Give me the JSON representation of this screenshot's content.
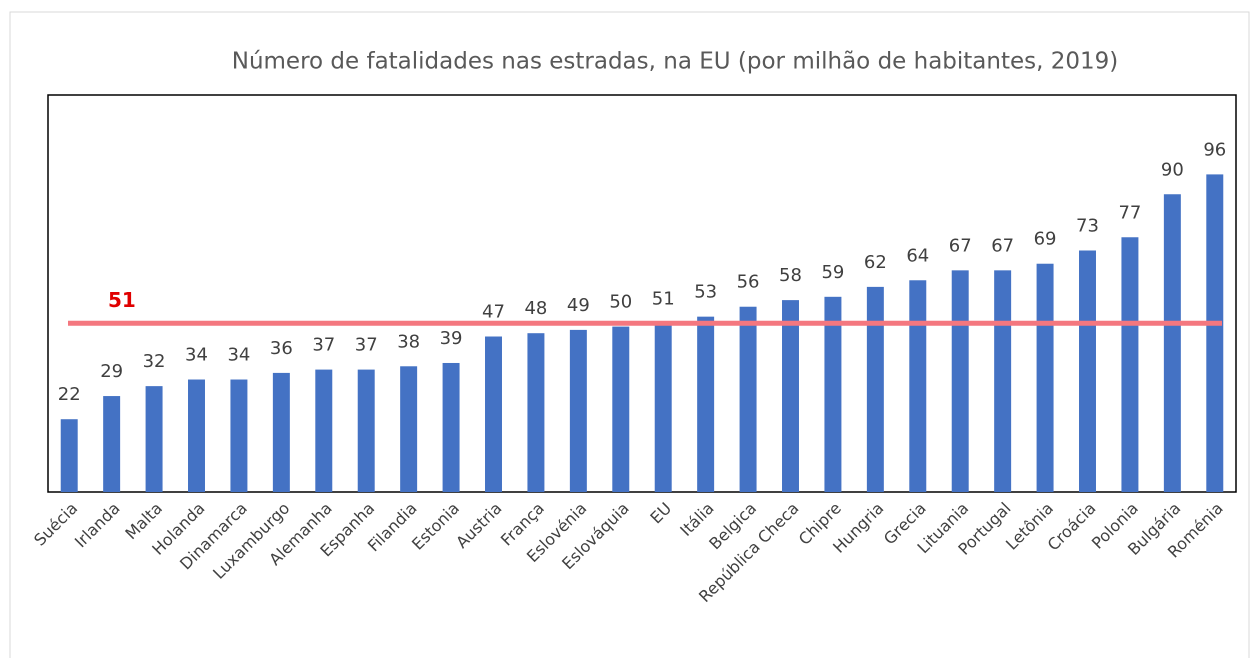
{
  "chart_data": {
    "type": "bar",
    "title": "Número de fatalidades nas estradas, na EU (por milhão de habitantes, 2019)",
    "categories": [
      "Suécia",
      "Irlanda",
      "Malta",
      "Holanda",
      "Dinamarca",
      "Luxamburgo",
      "Alemanha",
      "Espanha",
      "Filandia",
      "Estonia",
      "Austria",
      "França",
      "Eslovénia",
      "Eslováquia",
      "EU",
      "Itália",
      "Belgica",
      "República Checa",
      "Chipre",
      "Hungria",
      "Grecia",
      "Lituania",
      "Portugal",
      "Letônia",
      "Croácia",
      "Polonia",
      "Bulgária",
      "Roménia"
    ],
    "values": [
      22,
      29,
      32,
      34,
      34,
      36,
      37,
      37,
      38,
      39,
      47,
      48,
      49,
      50,
      51,
      53,
      56,
      58,
      59,
      62,
      64,
      67,
      67,
      69,
      73,
      77,
      90,
      96
    ],
    "color": "#4472c4",
    "ylim": [
      0,
      120
    ],
    "grid": false,
    "reference_line": {
      "value": 51,
      "color": "#f4777f",
      "label_color": "#e00000"
    }
  }
}
